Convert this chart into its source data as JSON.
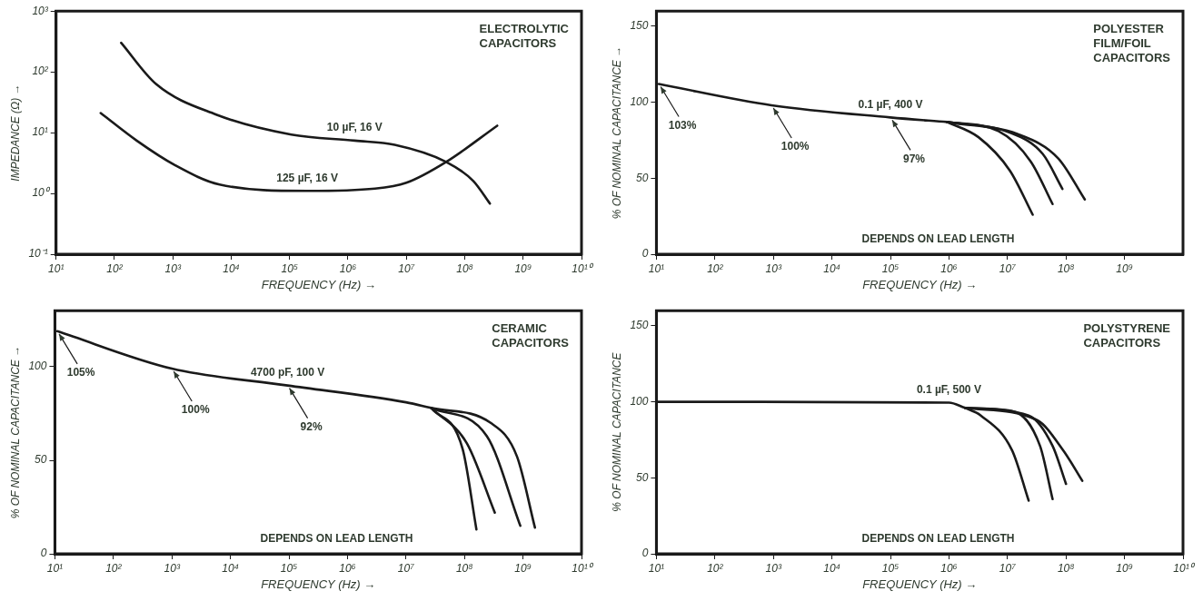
{
  "chart_data": [
    {
      "type": "line",
      "title": "ELECTROLYTIC CAPACITORS",
      "xlabel": "FREQUENCY (Hz) →",
      "ylabel": "IMPEDANCE (Ω) →",
      "log": "xy",
      "grid": false,
      "legend": false,
      "marker": "none",
      "line_style": "solid",
      "xlim": [
        10,
        10000000000
      ],
      "ylim": [
        0.1,
        1000
      ],
      "xticks": [
        {
          "value": 10,
          "label": "10¹"
        },
        {
          "value": 100,
          "label": "10²"
        },
        {
          "value": 1000,
          "label": "10³"
        },
        {
          "value": 10000,
          "label": "10⁴"
        },
        {
          "value": 100000,
          "label": "10⁵"
        },
        {
          "value": 1000000,
          "label": "10⁶"
        },
        {
          "value": 10000000,
          "label": "10⁷"
        },
        {
          "value": 100000000,
          "label": "10⁸"
        },
        {
          "value": 1000000000,
          "label": "10⁹"
        },
        {
          "value": 10000000000,
          "label": "10¹⁰"
        }
      ],
      "yticks": [
        {
          "value": 0.1,
          "label": "10⁻¹"
        },
        {
          "value": 1,
          "label": "10⁰"
        },
        {
          "value": 10,
          "label": "10¹"
        },
        {
          "value": 100,
          "label": "10²"
        },
        {
          "value": 1000,
          "label": "10³"
        }
      ],
      "series": [
        {
          "name": "10 µF, 16 V",
          "color": "#1a1a1a",
          "x": [
            130,
            515,
            5400,
            107000,
            1300000,
            6300000,
            48000000,
            140000000,
            270000000
          ],
          "values": [
            300,
            63,
            20,
            9.3,
            7.4,
            6.3,
            3.3,
            1.6,
            0.68
          ]
        },
        {
          "name": "125 µF, 16 V",
          "color": "#1a1a1a",
          "x": [
            58,
            240,
            1100,
            6300,
            200000,
            2900000,
            10000000,
            48000000,
            360000000
          ],
          "values": [
            21,
            7.4,
            2.9,
            1.4,
            1.1,
            1.2,
            1.5,
            3.3,
            13
          ]
        }
      ]
    },
    {
      "type": "line",
      "title": "POLYESTER FILM/FOIL CAPACITORS",
      "xlabel": "FREQUENCY (Hz) →",
      "ylabel": "% OF NOMINAL CAPACITANCE →",
      "log": "x",
      "grid": false,
      "legend": false,
      "marker": "none",
      "line_style": "solid",
      "xlim": [
        10,
        10000000000
      ],
      "ylim": [
        0,
        160
      ],
      "xticks": [
        {
          "value": 10,
          "label": "10¹"
        },
        {
          "value": 100,
          "label": "10²"
        },
        {
          "value": 1000,
          "label": "10³"
        },
        {
          "value": 10000,
          "label": "10⁴"
        },
        {
          "value": 100000,
          "label": "10⁵"
        },
        {
          "value": 1000000,
          "label": "10⁶"
        },
        {
          "value": 10000000,
          "label": "10⁷"
        },
        {
          "value": 100000000,
          "label": "10⁸"
        },
        {
          "value": 1000000000,
          "label": "10⁹"
        }
      ],
      "yticks": [
        0,
        50,
        100,
        150
      ],
      "annotations": [
        {
          "text": "103%",
          "x": 11,
          "y": 112
        },
        {
          "text": "100%",
          "x": 930,
          "y": 98
        },
        {
          "text": "97%",
          "x": 100000,
          "y": 90
        },
        "DEPENDS ON LEAD LENGTH"
      ],
      "series": [
        {
          "name": "0.1 µF, 400 V",
          "color": "#1a1a1a",
          "x": [
            11,
            930,
            100000,
            930000
          ],
          "values": [
            112,
            98,
            90,
            87
          ]
        },
        {
          "color": "#1a1a1a",
          "x": [
            930000,
            3200000,
            11000000,
            27000000
          ],
          "values": [
            87,
            77,
            55,
            26
          ]
        },
        {
          "color": "#1a1a1a",
          "x": [
            930000,
            7000000,
            25000000,
            59000000
          ],
          "values": [
            87,
            81,
            61,
            33
          ]
        },
        {
          "color": "#1a1a1a",
          "x": [
            930000,
            11000000,
            40000000,
            87000000
          ],
          "values": [
            87,
            80,
            66,
            43
          ]
        },
        {
          "color": "#1a1a1a",
          "x": [
            930000,
            15000000,
            74000000,
            210000000
          ],
          "values": [
            87,
            79,
            63,
            36
          ]
        }
      ]
    },
    {
      "type": "line",
      "title": "CERAMIC CAPACITORS",
      "xlabel": "FREQUENCY (Hz) →",
      "ylabel": "% OF NOMINAL CAPACITANCE →",
      "log": "x",
      "grid": false,
      "legend": false,
      "marker": "none",
      "line_style": "solid",
      "xlim": [
        10,
        10000000000
      ],
      "ylim": [
        0,
        130
      ],
      "xticks": [
        {
          "value": 10,
          "label": "10¹"
        },
        {
          "value": 100,
          "label": "10²"
        },
        {
          "value": 1000,
          "label": "10³"
        },
        {
          "value": 10000,
          "label": "10⁴"
        },
        {
          "value": 100000,
          "label": "10⁵"
        },
        {
          "value": 1000000,
          "label": "10⁶"
        },
        {
          "value": 10000000,
          "label": "10⁷"
        },
        {
          "value": 100000000,
          "label": "10⁸"
        },
        {
          "value": 1000000000,
          "label": "10⁹"
        },
        {
          "value": 10000000000,
          "label": "10¹⁰"
        }
      ],
      "yticks": [
        0,
        50,
        100
      ],
      "annotations": [
        {
          "text": "105%",
          "x": 11,
          "y": 119
        },
        {
          "text": "100%",
          "x": 1000,
          "y": 99
        },
        {
          "text": "92%",
          "x": 95000,
          "y": 90
        },
        "DEPENDS ON LEAD LENGTH"
      ],
      "series": [
        {
          "name": "4700 pF, 100 V",
          "color": "#1a1a1a",
          "x": [
            11,
            1000,
            95000,
            10000000,
            27000000
          ],
          "values": [
            119,
            99,
            90,
            81,
            78
          ]
        },
        {
          "color": "#1a1a1a",
          "x": [
            27000000,
            93000000,
            160000000
          ],
          "values": [
            78,
            56,
            13
          ]
        },
        {
          "color": "#1a1a1a",
          "x": [
            27000000,
            110000000,
            330000000
          ],
          "values": [
            78,
            59,
            22
          ]
        },
        {
          "color": "#1a1a1a",
          "x": [
            27000000,
            240000000,
            900000000
          ],
          "values": [
            78,
            63,
            15
          ]
        },
        {
          "color": "#1a1a1a",
          "x": [
            27000000,
            280000000,
            790000000,
            1600000000
          ],
          "values": [
            78,
            70,
            52,
            14
          ]
        }
      ]
    },
    {
      "type": "line",
      "title": "POLYSTYRENE CAPACITORS",
      "xlabel": "FREQUENCY (Hz) →",
      "ylabel": "% OF NOMINAL CAPACITANCE",
      "log": "x",
      "grid": false,
      "legend": false,
      "marker": "none",
      "line_style": "solid",
      "xlim": [
        10,
        10000000000
      ],
      "ylim": [
        0,
        160
      ],
      "xticks": [
        {
          "value": 10,
          "label": "10¹"
        },
        {
          "value": 100,
          "label": "10²"
        },
        {
          "value": 1000,
          "label": "10³"
        },
        {
          "value": 10000,
          "label": "10⁴"
        },
        {
          "value": 100000,
          "label": "10⁵"
        },
        {
          "value": 1000000,
          "label": "10⁶"
        },
        {
          "value": 10000000,
          "label": "10⁷"
        },
        {
          "value": 100000000,
          "label": "10⁸"
        },
        {
          "value": 1000000000,
          "label": "10⁹"
        },
        {
          "value": 10000000000,
          "label": "10¹⁰"
        }
      ],
      "yticks": [
        0,
        50,
        100,
        150
      ],
      "annotations": [
        "DEPENDS ON LEAD LENGTH"
      ],
      "series": [
        {
          "name": "0.1 µF, 500 V",
          "color": "#1a1a1a",
          "x": [
            10,
            1000000,
            1900000
          ],
          "values": [
            100,
            99.5,
            96
          ]
        },
        {
          "color": "#1a1a1a",
          "x": [
            1900000,
            3500000,
            12000000,
            23000000
          ],
          "values": [
            96,
            91,
            68,
            35
          ]
        },
        {
          "color": "#1a1a1a",
          "x": [
            1900000,
            12000000,
            36000000,
            59000000
          ],
          "values": [
            96,
            94,
            71,
            36
          ]
        },
        {
          "color": "#1a1a1a",
          "x": [
            1900000,
            23000000,
            59000000,
            100000000
          ],
          "values": [
            96,
            91,
            71,
            46
          ]
        },
        {
          "color": "#1a1a1a",
          "x": [
            1900000,
            32000000,
            90000000,
            190000000
          ],
          "values": [
            96,
            88,
            68,
            48
          ]
        }
      ]
    }
  ]
}
